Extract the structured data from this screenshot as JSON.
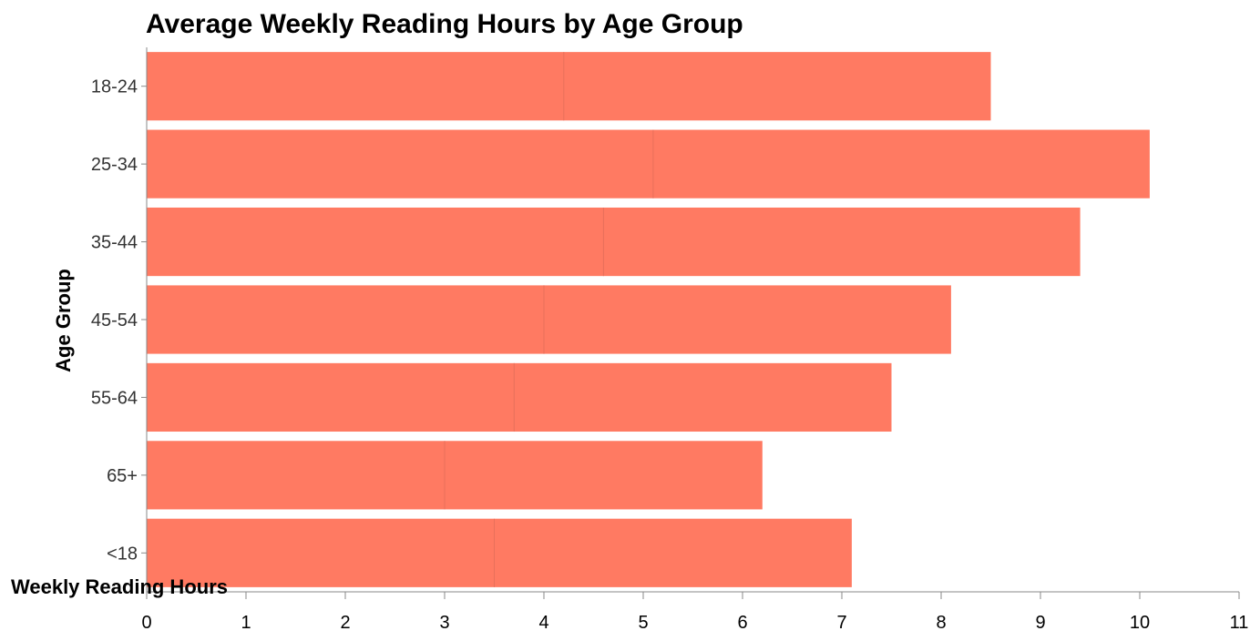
{
  "chart_data": {
    "type": "bar",
    "orientation": "horizontal",
    "stacked": true,
    "title": "Average Weekly Reading Hours by Age Group",
    "xlabel": "Weekly Reading Hours",
    "ylabel": "Age Group",
    "xlim": [
      0,
      11
    ],
    "x_ticks": [
      0,
      1,
      2,
      3,
      4,
      5,
      6,
      7,
      8,
      9,
      10,
      11
    ],
    "categories": [
      "18-24",
      "25-34",
      "35-44",
      "45-54",
      "55-64",
      "65+",
      "<18"
    ],
    "segments": [
      {
        "values": [
          4.2,
          5.1,
          4.6,
          4.0,
          3.7,
          3.0,
          3.5
        ]
      },
      {
        "values": [
          4.3,
          5.0,
          4.8,
          4.1,
          3.8,
          3.2,
          3.6
        ]
      }
    ],
    "totals": [
      8.5,
      10.1,
      9.4,
      8.1,
      7.5,
      6.2,
      7.1
    ],
    "grid": false,
    "colors": {
      "bar": "#ff7a62",
      "segment_divider": "#e8705b",
      "axis": "#888888"
    }
  }
}
